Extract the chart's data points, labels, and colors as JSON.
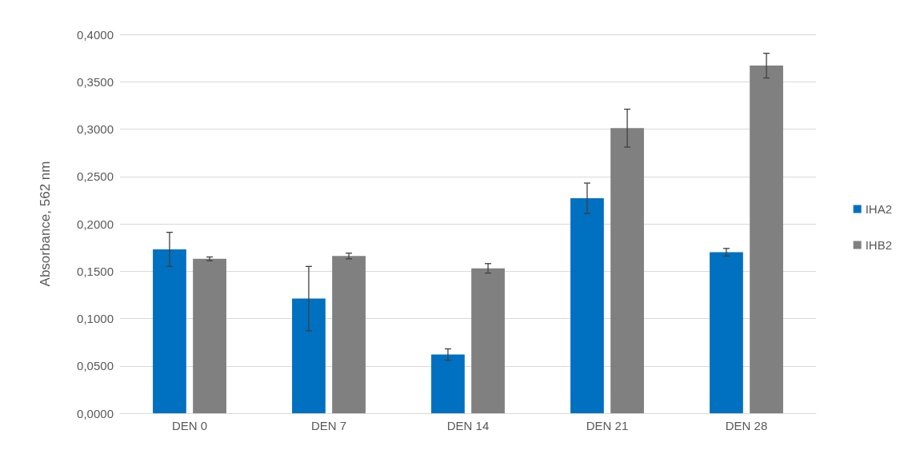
{
  "chart_data": {
    "type": "bar",
    "ylabel": "Absorbance, 562 nm",
    "categories": [
      "DEN 0",
      "DEN 7",
      "DEN 14",
      "DEN 21",
      "DEN 28"
    ],
    "series": [
      {
        "name": "IHA2",
        "color": "#0070c0",
        "values": [
          0.173,
          0.121,
          0.062,
          0.227,
          0.17
        ],
        "errors": [
          0.018,
          0.034,
          0.006,
          0.016,
          0.004
        ]
      },
      {
        "name": "IHB2",
        "color": "#808080",
        "values": [
          0.163,
          0.166,
          0.153,
          0.301,
          0.367
        ],
        "errors": [
          0.002,
          0.003,
          0.005,
          0.02,
          0.013
        ]
      }
    ],
    "ylim": [
      0,
      0.4
    ],
    "yticks": [
      {
        "value": 0,
        "label": "0,0000"
      },
      {
        "value": 0.05,
        "label": "0,0500"
      },
      {
        "value": 0.1,
        "label": "0,1000"
      },
      {
        "value": 0.15,
        "label": "0,1500"
      },
      {
        "value": 0.2,
        "label": "0,2000"
      },
      {
        "value": 0.25,
        "label": "0,2500"
      },
      {
        "value": 0.3,
        "label": "0,3000"
      },
      {
        "value": 0.35,
        "label": "0,3500"
      },
      {
        "value": 0.4,
        "label": "0,4000"
      }
    ],
    "grid": "y",
    "legend": "right"
  }
}
